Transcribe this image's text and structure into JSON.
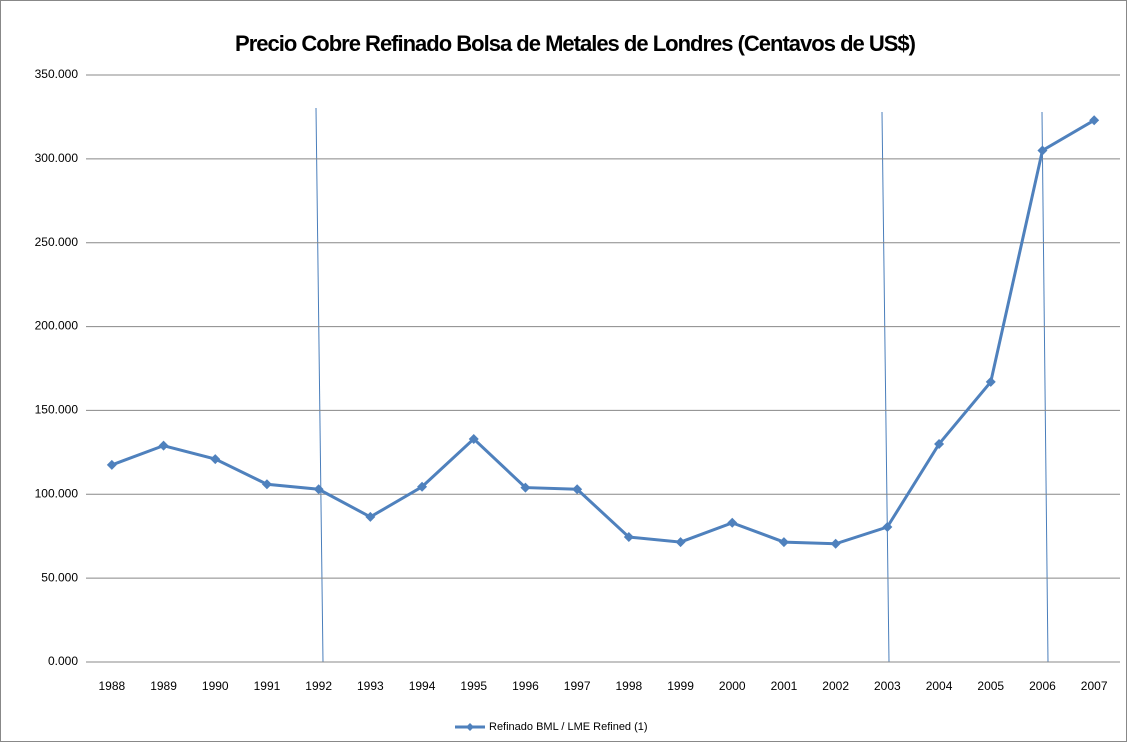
{
  "chart_data": {
    "type": "line",
    "title": "Precio Cobre Refinado Bolsa de Metales de Londres (Centavos de US$)",
    "categories": [
      "1988",
      "1989",
      "1990",
      "1991",
      "1992",
      "1993",
      "1994",
      "1995",
      "1996",
      "1997",
      "1998",
      "1999",
      "2000",
      "2001",
      "2002",
      "2003",
      "2004",
      "2005",
      "2006",
      "2007"
    ],
    "series": [
      {
        "name": "Refinado BML / LME Refined (1)",
        "color": "#4f81bd",
        "values": [
          117.5,
          129,
          121,
          106,
          103,
          86.5,
          104.5,
          133,
          104,
          103,
          74.5,
          71.5,
          83,
          71.5,
          70.5,
          80.5,
          130,
          167,
          305,
          323
        ]
      }
    ],
    "ylim": [
      0,
      350
    ],
    "yticks": [
      {
        "value": 0,
        "label": "0.000"
      },
      {
        "value": 50,
        "label": "50.000"
      },
      {
        "value": 100,
        "label": "100.000"
      },
      {
        "value": 150,
        "label": "150.000"
      },
      {
        "value": 200,
        "label": "200.000"
      },
      {
        "value": 250,
        "label": "250.000"
      },
      {
        "value": 300,
        "label": "300.000"
      },
      {
        "value": 350,
        "label": "350.000"
      }
    ],
    "grid": true,
    "legend": "bottom"
  }
}
